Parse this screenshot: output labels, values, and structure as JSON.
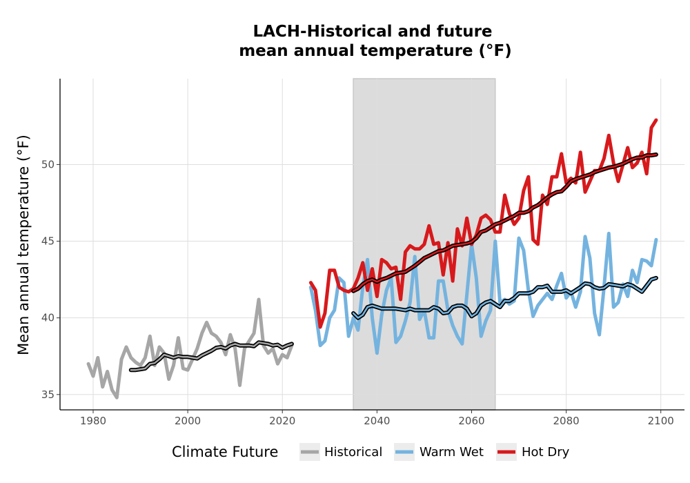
{
  "chart_data": {
    "type": "line",
    "title_line1": "LACH-Historical and future",
    "title_line2": "mean annual temperature (°F)",
    "xlabel": "",
    "ylabel": "Mean annual temperature (°F)",
    "xlim": [
      1973,
      2105
    ],
    "ylim": [
      34,
      55.6
    ],
    "x_ticks": [
      1980,
      2000,
      2020,
      2040,
      2060,
      2080,
      2100
    ],
    "y_ticks": [
      35,
      40,
      45,
      50
    ],
    "grid": true,
    "shaded_period": [
      2035,
      2065
    ],
    "legend_title": "Climate Future",
    "legend_position": "bottom",
    "series": [
      {
        "name": "Historical",
        "color": "#a6a6a6",
        "x": [
          1979,
          1980,
          1981,
          1982,
          1983,
          1984,
          1985,
          1986,
          1987,
          1988,
          1989,
          1990,
          1991,
          1992,
          1993,
          1994,
          1995,
          1996,
          1997,
          1998,
          1999,
          2000,
          2001,
          2002,
          2003,
          2004,
          2005,
          2006,
          2007,
          2008,
          2009,
          2010,
          2011,
          2012,
          2013,
          2014,
          2015,
          2016,
          2017,
          2018,
          2019,
          2020,
          2021,
          2022
        ],
        "y": [
          37.0,
          36.2,
          37.4,
          35.5,
          36.5,
          35.3,
          34.8,
          37.3,
          38.1,
          37.4,
          37.1,
          36.9,
          37.4,
          38.8,
          36.9,
          38.1,
          37.7,
          36.0,
          36.9,
          38.7,
          36.7,
          36.6,
          37.3,
          38.0,
          39.0,
          39.7,
          39.0,
          38.8,
          38.4,
          37.6,
          38.9,
          38.0,
          35.6,
          38.0,
          38.5,
          39.0,
          41.2,
          38.2,
          37.7,
          38.0,
          37.0,
          37.6,
          37.4,
          38.2
        ]
      },
      {
        "name": "Historical smoothed",
        "color": "#a6a6a6",
        "smooth": true,
        "x": [
          1988,
          1989,
          1990,
          1991,
          1992,
          1993,
          1994,
          1995,
          1996,
          1997,
          1998,
          1999,
          2000,
          2001,
          2002,
          2003,
          2004,
          2005,
          2006,
          2007,
          2008,
          2009,
          2010,
          2011,
          2012,
          2013,
          2014,
          2015,
          2016,
          2017,
          2018,
          2019,
          2020,
          2021,
          2022
        ],
        "y": [
          36.6,
          36.6,
          36.65,
          36.7,
          37.0,
          37.05,
          37.3,
          37.6,
          37.5,
          37.4,
          37.5,
          37.45,
          37.45,
          37.4,
          37.35,
          37.55,
          37.7,
          37.85,
          38.05,
          38.1,
          38.0,
          38.2,
          38.3,
          38.2,
          38.2,
          38.2,
          38.15,
          38.4,
          38.35,
          38.3,
          38.2,
          38.25,
          38.05,
          38.2,
          38.3
        ]
      },
      {
        "name": "Warm Wet",
        "color": "#74b3df",
        "x": [
          2026,
          2027,
          2028,
          2029,
          2030,
          2031,
          2032,
          2033,
          2034,
          2035,
          2036,
          2037,
          2038,
          2039,
          2040,
          2041,
          2042,
          2043,
          2044,
          2045,
          2046,
          2047,
          2048,
          2049,
          2050,
          2051,
          2052,
          2053,
          2054,
          2055,
          2056,
          2057,
          2058,
          2059,
          2060,
          2061,
          2062,
          2063,
          2064,
          2065,
          2066,
          2067,
          2068,
          2069,
          2070,
          2071,
          2072,
          2073,
          2074,
          2075,
          2076,
          2077,
          2078,
          2079,
          2080,
          2081,
          2082,
          2083,
          2084,
          2085,
          2086,
          2087,
          2088,
          2089,
          2090,
          2091,
          2092,
          2093,
          2094,
          2095,
          2096,
          2097,
          2098,
          2099
        ],
        "y": [
          42.0,
          40.5,
          38.2,
          38.5,
          40.0,
          40.5,
          42.6,
          42.3,
          38.8,
          40.0,
          39.2,
          42.0,
          43.8,
          40.0,
          37.7,
          40.2,
          41.8,
          42.6,
          38.4,
          38.8,
          39.8,
          41.0,
          44.0,
          39.9,
          40.5,
          38.7,
          38.7,
          42.4,
          42.4,
          40.5,
          39.5,
          38.8,
          38.3,
          41.5,
          44.8,
          42.6,
          38.8,
          39.8,
          40.5,
          45.0,
          41.0,
          41.2,
          40.9,
          41.1,
          45.2,
          44.4,
          41.8,
          40.1,
          40.8,
          41.2,
          41.6,
          41.2,
          42.1,
          42.9,
          41.3,
          41.7,
          40.7,
          41.7,
          45.3,
          43.9,
          40.3,
          38.9,
          42.0,
          45.5,
          40.7,
          41.0,
          42.2,
          41.4,
          43.1,
          42.3,
          43.8,
          43.7,
          43.4,
          45.1
        ]
      },
      {
        "name": "Warm Wet smoothed",
        "color": "#74b3df",
        "smooth": true,
        "x": [
          2035,
          2036,
          2037,
          2038,
          2039,
          2040,
          2041,
          2042,
          2043,
          2044,
          2045,
          2046,
          2047,
          2048,
          2049,
          2050,
          2051,
          2052,
          2053,
          2054,
          2055,
          2056,
          2057,
          2058,
          2059,
          2060,
          2061,
          2062,
          2063,
          2064,
          2065,
          2066,
          2067,
          2068,
          2069,
          2070,
          2071,
          2072,
          2073,
          2074,
          2075,
          2076,
          2077,
          2078,
          2079,
          2080,
          2081,
          2082,
          2083,
          2084,
          2085,
          2086,
          2087,
          2088,
          2089,
          2090,
          2091,
          2092,
          2093,
          2094,
          2095,
          2096,
          2097,
          2098,
          2099
        ],
        "y": [
          40.3,
          40.0,
          40.2,
          40.7,
          40.8,
          40.7,
          40.6,
          40.6,
          40.6,
          40.6,
          40.55,
          40.5,
          40.6,
          40.5,
          40.5,
          40.5,
          40.5,
          40.7,
          40.6,
          40.3,
          40.35,
          40.7,
          40.8,
          40.8,
          40.6,
          40.1,
          40.3,
          40.8,
          41.0,
          41.1,
          40.9,
          40.7,
          41.1,
          41.1,
          41.3,
          41.6,
          41.6,
          41.6,
          41.7,
          42.0,
          42.0,
          42.1,
          41.7,
          41.7,
          41.7,
          41.8,
          41.6,
          41.8,
          42.0,
          42.25,
          42.2,
          42.0,
          41.9,
          41.95,
          42.2,
          42.15,
          42.1,
          42.05,
          42.2,
          42.1,
          41.9,
          41.7,
          42.1,
          42.5,
          42.6
        ]
      },
      {
        "name": "Hot Dry",
        "color": "#d7191c",
        "x": [
          2026,
          2027,
          2028,
          2029,
          2030,
          2031,
          2032,
          2033,
          2034,
          2035,
          2036,
          2037,
          2038,
          2039,
          2040,
          2041,
          2042,
          2043,
          2044,
          2045,
          2046,
          2047,
          2048,
          2049,
          2050,
          2051,
          2052,
          2053,
          2054,
          2055,
          2056,
          2057,
          2058,
          2059,
          2060,
          2061,
          2062,
          2063,
          2064,
          2065,
          2066,
          2067,
          2068,
          2069,
          2070,
          2071,
          2072,
          2073,
          2074,
          2075,
          2076,
          2077,
          2078,
          2079,
          2080,
          2081,
          2082,
          2083,
          2084,
          2085,
          2086,
          2087,
          2088,
          2089,
          2090,
          2091,
          2092,
          2093,
          2094,
          2095,
          2096,
          2097,
          2098,
          2099
        ],
        "y": [
          42.3,
          41.8,
          39.4,
          40.3,
          43.1,
          43.1,
          42.0,
          41.8,
          41.7,
          41.9,
          42.6,
          43.6,
          41.8,
          43.2,
          41.4,
          43.8,
          43.6,
          43.2,
          43.3,
          41.2,
          44.3,
          44.7,
          44.5,
          44.5,
          44.8,
          46.0,
          44.8,
          44.9,
          42.8,
          44.9,
          42.4,
          45.8,
          44.7,
          46.5,
          44.8,
          45.4,
          46.5,
          46.7,
          46.4,
          45.6,
          45.6,
          48.0,
          46.8,
          46.1,
          46.5,
          48.3,
          49.2,
          45.1,
          44.8,
          48.0,
          47.4,
          49.2,
          49.2,
          50.7,
          48.8,
          49.1,
          48.8,
          50.8,
          48.2,
          48.9,
          49.6,
          49.6,
          50.4,
          51.9,
          50.1,
          48.9,
          50.0,
          51.1,
          49.8,
          50.1,
          50.8,
          49.4,
          52.4,
          52.9
        ]
      },
      {
        "name": "Hot Dry smoothed",
        "color": "#d7191c",
        "smooth": true,
        "x": [
          2035,
          2036,
          2037,
          2038,
          2039,
          2040,
          2041,
          2042,
          2043,
          2044,
          2045,
          2046,
          2047,
          2048,
          2049,
          2050,
          2051,
          2052,
          2053,
          2054,
          2055,
          2056,
          2057,
          2058,
          2059,
          2060,
          2061,
          2062,
          2063,
          2064,
          2065,
          2066,
          2067,
          2068,
          2069,
          2070,
          2071,
          2072,
          2073,
          2074,
          2075,
          2076,
          2077,
          2078,
          2079,
          2080,
          2081,
          2082,
          2083,
          2084,
          2085,
          2086,
          2087,
          2088,
          2089,
          2090,
          2091,
          2092,
          2093,
          2094,
          2095,
          2096,
          2097,
          2098,
          2099
        ],
        "y": [
          41.75,
          41.9,
          42.2,
          42.4,
          42.5,
          42.35,
          42.5,
          42.6,
          42.75,
          42.9,
          42.95,
          43.0,
          43.2,
          43.4,
          43.65,
          43.9,
          44.05,
          44.2,
          44.35,
          44.4,
          44.55,
          44.7,
          44.75,
          44.8,
          44.85,
          44.95,
          45.2,
          45.6,
          45.7,
          45.9,
          46.1,
          46.2,
          46.35,
          46.5,
          46.65,
          46.85,
          46.85,
          46.95,
          47.2,
          47.35,
          47.6,
          47.85,
          48.05,
          48.2,
          48.25,
          48.55,
          48.9,
          49.05,
          49.15,
          49.25,
          49.35,
          49.5,
          49.6,
          49.7,
          49.8,
          49.85,
          49.95,
          50.05,
          50.2,
          50.35,
          50.45,
          50.45,
          50.6,
          50.6,
          50.65
        ]
      }
    ],
    "legend": [
      {
        "label": "Historical",
        "color": "#a6a6a6"
      },
      {
        "label": "Warm Wet",
        "color": "#74b3df"
      },
      {
        "label": "Hot Dry",
        "color": "#d7191c"
      }
    ]
  }
}
